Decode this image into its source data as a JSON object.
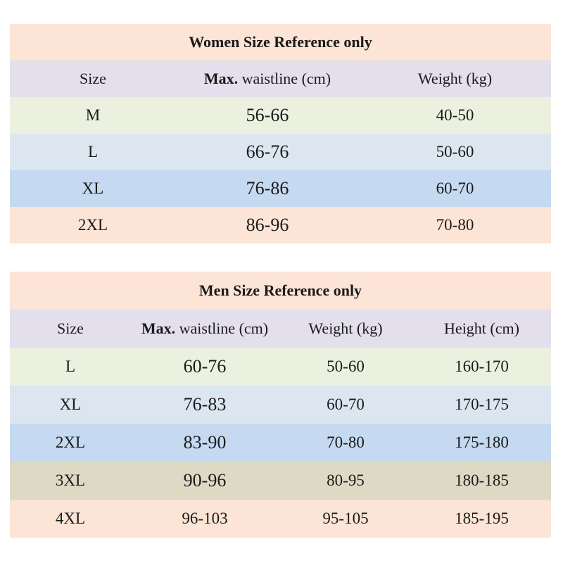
{
  "women": {
    "title": "Women Size Reference only",
    "headers": {
      "size": "Size",
      "waist_bold": "Max.",
      "waist_rest": " waistline (cm)",
      "weight": "Weight (kg)"
    },
    "rows": [
      {
        "size": "M",
        "waist": "56-66",
        "weight": "40-50"
      },
      {
        "size": "L",
        "waist": "66-76",
        "weight": "50-60"
      },
      {
        "size": "XL",
        "waist": "76-86",
        "weight": "60-70"
      },
      {
        "size": "2XL",
        "waist": "86-96",
        "weight": "70-80"
      }
    ]
  },
  "men": {
    "title": "Men Size Reference only",
    "headers": {
      "size": "Size",
      "waist_bold": "Max.",
      "waist_rest": " waistline (cm)",
      "weight": "Weight (kg)",
      "height": "Height (cm)"
    },
    "rows": [
      {
        "size": "L",
        "waist": "60-76",
        "weight": "50-60",
        "height": "160-170"
      },
      {
        "size": "XL",
        "waist": "76-83",
        "weight": "60-70",
        "height": "170-175"
      },
      {
        "size": "2XL",
        "waist": "83-90",
        "weight": "70-80",
        "height": "175-180"
      },
      {
        "size": "3XL",
        "waist": "90-96",
        "weight": "80-95",
        "height": "180-185"
      },
      {
        "size": "4XL",
        "waist": "96-103",
        "weight": "95-105",
        "height": "185-195"
      }
    ]
  },
  "colors": {
    "title_bg": "#fce4d6",
    "header_bg": "#e4dfec",
    "row_green": "#ebf1de",
    "row_light_blue": "#dce6f1",
    "row_blue": "#c5d9f1",
    "row_tan": "#ddd9c4",
    "row_peach": "#fce4d6"
  }
}
